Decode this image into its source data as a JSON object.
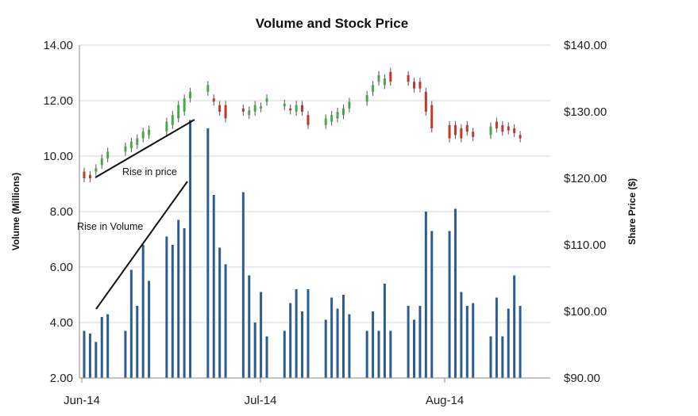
{
  "chart_data": {
    "type": "bar",
    "title": "Volume and Stock Price",
    "ylabel": "Volume (Millions)",
    "y2label": "Share Price ($)",
    "ylim": [
      2,
      14
    ],
    "y2lim": [
      90,
      140
    ],
    "yticks": [
      "2.00",
      "4.00",
      "6.00",
      "8.00",
      "10.00",
      "12.00",
      "14.00"
    ],
    "y2ticks": [
      "$90.00",
      "$100.00",
      "$110.00",
      "$120.00",
      "$130.00",
      "$140.00"
    ],
    "xticks": [
      "Jun-14",
      "Jul-14",
      "Aug-14"
    ],
    "grid": true,
    "colors": {
      "volume": "#2e5c8e",
      "up": "#4aa84a",
      "down": "#c0392b",
      "wick": "#555555",
      "grid": "#d4d4d4"
    },
    "series": [
      {
        "type": "bar",
        "values": [
          3.7,
          3.6,
          3.3,
          4.2,
          4.3,
          3.7,
          5.9,
          4.6,
          6.8,
          5.5,
          7.1,
          6.8,
          7.7,
          7.4,
          11.3,
          11.0,
          8.6,
          6.7,
          6.1,
          8.7,
          5.7,
          4.0,
          5.1,
          3.5,
          3.7,
          4.7,
          5.2,
          4.4,
          5.2,
          4.1,
          4.9,
          4.5,
          5.0,
          4.3,
          3.7,
          4.4,
          3.7,
          5.4,
          3.7,
          4.6,
          4.1,
          4.6,
          8.0,
          7.3,
          7.3,
          8.1,
          5.1,
          4.6,
          4.7,
          3.5,
          4.9,
          3.5,
          4.5,
          5.7,
          4.6
        ]
      },
      {
        "type": "candlestick",
        "open": [
          121,
          120.5,
          121,
          122,
          123,
          124,
          124.5,
          125,
          126,
          126.5,
          127,
          128,
          129,
          130,
          132,
          133,
          132,
          131,
          131,
          130.5,
          129.5,
          130,
          130.5,
          131.5,
          130.8,
          130.5,
          130,
          131,
          129.5,
          128,
          128.5,
          129,
          129.5,
          130.5,
          131.5,
          133,
          134.5,
          134,
          136,
          135.5,
          134.5,
          134.5,
          133,
          131,
          128,
          128,
          127.5,
          128,
          127,
          126.5,
          128.5,
          128,
          127.8,
          127.5,
          126.5
        ],
        "close": [
          120,
          120,
          121.5,
          123,
          124,
          124.8,
          125.5,
          126,
          127,
          127.3,
          128.5,
          129.5,
          131,
          132,
          133,
          134,
          131.5,
          130,
          129,
          130,
          130.2,
          131,
          130.8,
          132,
          131.2,
          130.2,
          131,
          130,
          128,
          129,
          129.5,
          130,
          130.5,
          131.5,
          132.5,
          134,
          135.5,
          135,
          134.5,
          134.5,
          133.5,
          133.5,
          130,
          127.5,
          126,
          126.5,
          126,
          127,
          126.2,
          127.8,
          127.5,
          127,
          127.2,
          126.8,
          126
        ]
      }
    ],
    "annotations": [
      "Rise in price",
      "Rise in Volume"
    ]
  }
}
